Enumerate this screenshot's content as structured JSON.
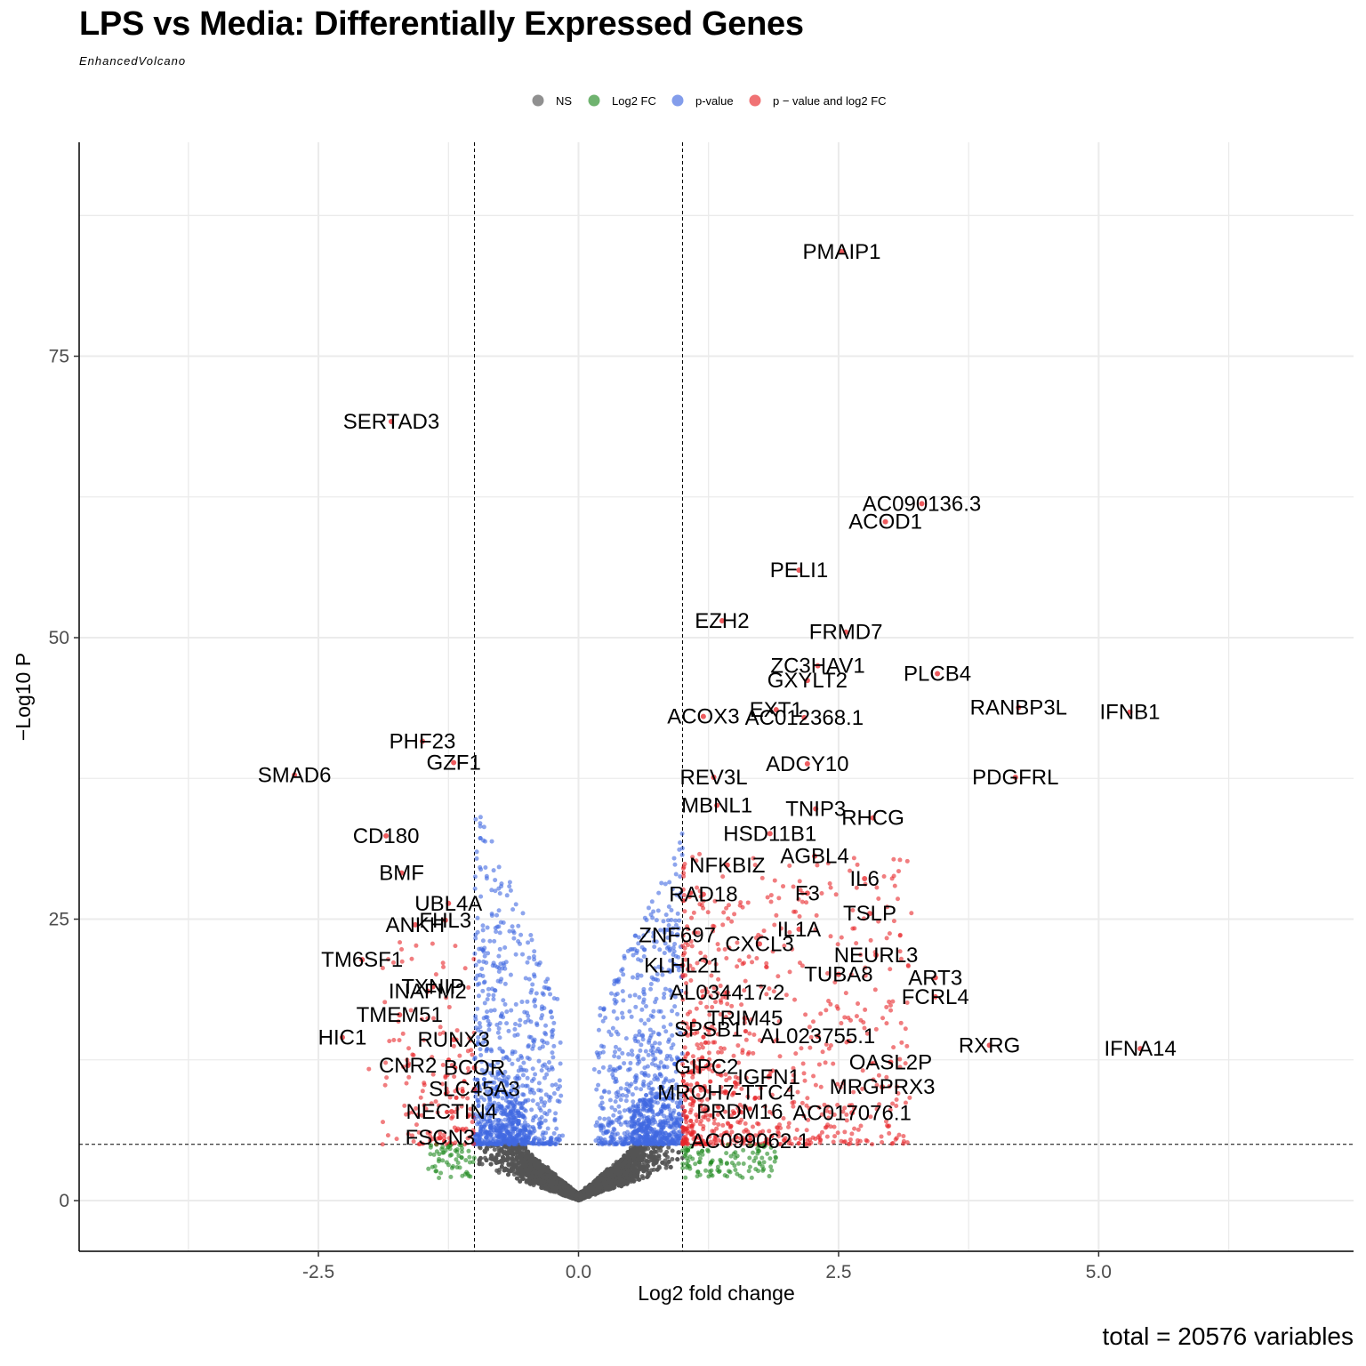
{
  "chart_data": {
    "type": "scatter",
    "title": "LPS vs Media: Differentially Expressed Genes",
    "subtitle": "EnhancedVolcano",
    "caption": "total = 20576 variables",
    "xlabel": "Log2 fold change",
    "ylabel": "−Log10 P",
    "xlim": [
      -4.8,
      7.45
    ],
    "ylim": [
      -4.5,
      94
    ],
    "xticks": [
      -2.5,
      0.0,
      2.5,
      5.0
    ],
    "xtick_labels": [
      "-2.5",
      "0.0",
      "2.5",
      "5.0"
    ],
    "yticks": [
      0,
      25,
      50,
      75
    ],
    "ytick_labels": [
      "0",
      "25",
      "50",
      "75"
    ],
    "grid": true,
    "fc_cutoff": 1.0,
    "p_cutoff": 5.0,
    "legend": {
      "position": "top",
      "items": [
        {
          "key": "ns",
          "label": "NS",
          "color": "#555555"
        },
        {
          "key": "fc",
          "label": "Log2 FC",
          "color": "#228B22"
        },
        {
          "key": "p",
          "label": "p-value",
          "color": "#4169E1"
        },
        {
          "key": "both",
          "label": "p − value and log2 FC",
          "color": "#E8262A"
        }
      ]
    },
    "labeled_genes": [
      {
        "gene": "PMAIP1",
        "x": 2.53,
        "y": 84.3
      },
      {
        "gene": "SERTAD3",
        "x": -1.8,
        "y": 69.2
      },
      {
        "gene": "AC090136.3",
        "x": 3.3,
        "y": 61.9
      },
      {
        "gene": "ACOD1",
        "x": 2.95,
        "y": 60.3
      },
      {
        "gene": "PELI1",
        "x": 2.12,
        "y": 56.0
      },
      {
        "gene": "EZH2",
        "x": 1.38,
        "y": 51.5
      },
      {
        "gene": "FRMD7",
        "x": 2.57,
        "y": 50.5
      },
      {
        "gene": "ZC3HAV1",
        "x": 2.3,
        "y": 47.5
      },
      {
        "gene": "PLCB4",
        "x": 3.45,
        "y": 46.8
      },
      {
        "gene": "GXYLT2",
        "x": 2.2,
        "y": 46.2
      },
      {
        "gene": "RANBP3L",
        "x": 4.23,
        "y": 43.8
      },
      {
        "gene": "IFNB1",
        "x": 5.3,
        "y": 43.4
      },
      {
        "gene": "EXT1",
        "x": 1.9,
        "y": 43.6
      },
      {
        "gene": "ACOX3",
        "x": 1.2,
        "y": 43.0
      },
      {
        "gene": "AC012368.1",
        "x": 2.17,
        "y": 42.9
      },
      {
        "gene": "PHF23",
        "x": -1.5,
        "y": 40.8
      },
      {
        "gene": "GZF1",
        "x": -1.2,
        "y": 38.9
      },
      {
        "gene": "ADCY10",
        "x": 2.2,
        "y": 38.8
      },
      {
        "gene": "SMAD6",
        "x": -2.73,
        "y": 37.8
      },
      {
        "gene": "PDGFRL",
        "x": 4.2,
        "y": 37.6
      },
      {
        "gene": "REV3L",
        "x": 1.3,
        "y": 37.6
      },
      {
        "gene": "MBNL1",
        "x": 1.33,
        "y": 35.1
      },
      {
        "gene": "TNIP3",
        "x": 2.28,
        "y": 34.8
      },
      {
        "gene": "RHCG",
        "x": 2.83,
        "y": 34.0
      },
      {
        "gene": "CD180",
        "x": -1.85,
        "y": 32.4
      },
      {
        "gene": "HSD11B1",
        "x": 1.84,
        "y": 32.6
      },
      {
        "gene": "AGBL4",
        "x": 2.27,
        "y": 30.6
      },
      {
        "gene": "NFKBIZ",
        "x": 1.43,
        "y": 29.8
      },
      {
        "gene": "BMF",
        "x": -1.7,
        "y": 29.1
      },
      {
        "gene": "IL6",
        "x": 2.75,
        "y": 28.6
      },
      {
        "gene": "RAD18",
        "x": 1.2,
        "y": 27.2
      },
      {
        "gene": "F3",
        "x": 2.2,
        "y": 27.3
      },
      {
        "gene": "UBL4A",
        "x": -1.25,
        "y": 26.4
      },
      {
        "gene": "TSLP",
        "x": 2.8,
        "y": 25.5
      },
      {
        "gene": "FHL3",
        "x": -1.28,
        "y": 24.9
      },
      {
        "gene": "IL1A",
        "x": 2.12,
        "y": 24.1
      },
      {
        "gene": "ZNF697",
        "x": 0.95,
        "y": 23.6
      },
      {
        "gene": "ANKH",
        "x": -1.57,
        "y": 24.5
      },
      {
        "gene": "CXCL3",
        "x": 1.74,
        "y": 22.8
      },
      {
        "gene": "NEURL3",
        "x": 2.86,
        "y": 21.8
      },
      {
        "gene": "TM6SF1",
        "x": -2.08,
        "y": 21.4
      },
      {
        "gene": "KLHL21",
        "x": 1.0,
        "y": 20.9
      },
      {
        "gene": "TUBA8",
        "x": 2.5,
        "y": 20.1
      },
      {
        "gene": "ART3",
        "x": 3.43,
        "y": 19.8
      },
      {
        "gene": "TXNIP",
        "x": -1.4,
        "y": 19.0
      },
      {
        "gene": "AL034417.2",
        "x": 1.43,
        "y": 18.5
      },
      {
        "gene": "INAFM2",
        "x": -1.45,
        "y": 18.6
      },
      {
        "gene": "FCRL4",
        "x": 3.43,
        "y": 18.1
      },
      {
        "gene": "TMEM51",
        "x": -1.72,
        "y": 16.5
      },
      {
        "gene": "TRIM45",
        "x": 1.6,
        "y": 16.2
      },
      {
        "gene": "HIC1",
        "x": -2.27,
        "y": 14.5
      },
      {
        "gene": "SPSB1",
        "x": 1.25,
        "y": 15.2
      },
      {
        "gene": "AL023755.1",
        "x": 2.3,
        "y": 14.6
      },
      {
        "gene": "RUNX3",
        "x": -1.2,
        "y": 14.3
      },
      {
        "gene": "RXRG",
        "x": 3.95,
        "y": 13.8
      },
      {
        "gene": "IFNA14",
        "x": 5.4,
        "y": 13.5
      },
      {
        "gene": "CNR2",
        "x": -1.64,
        "y": 12.0
      },
      {
        "gene": "BCOR",
        "x": -1.0,
        "y": 11.8
      },
      {
        "gene": "OASL2P",
        "x": 3.0,
        "y": 12.3
      },
      {
        "gene": "GIPC2",
        "x": 1.23,
        "y": 11.9
      },
      {
        "gene": "IGFN1",
        "x": 1.83,
        "y": 11.0
      },
      {
        "gene": "SLC45A3",
        "x": -1.0,
        "y": 9.9
      },
      {
        "gene": "MRGPRX3",
        "x": 2.92,
        "y": 10.1
      },
      {
        "gene": "MROH7-TTC4",
        "x": 1.42,
        "y": 9.6
      },
      {
        "gene": "NECTIN4",
        "x": -1.22,
        "y": 7.9
      },
      {
        "gene": "PRDM16",
        "x": 1.55,
        "y": 7.9
      },
      {
        "gene": "AC017076.1",
        "x": 2.63,
        "y": 7.8
      },
      {
        "gene": "FSCN3",
        "x": -1.33,
        "y": 5.6
      },
      {
        "gene": "AC099062.1",
        "x": 1.65,
        "y": 5.3
      }
    ]
  }
}
